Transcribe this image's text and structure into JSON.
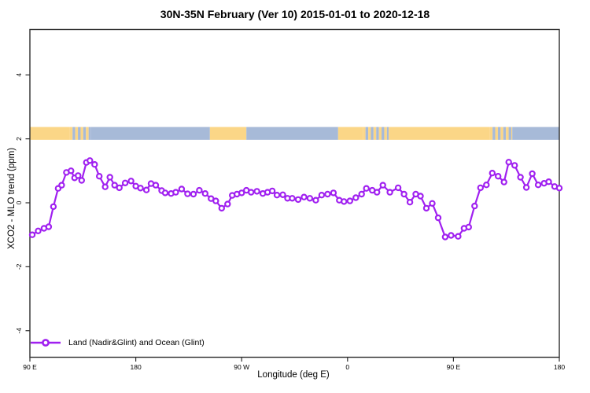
{
  "chart_data": {
    "type": "line",
    "title": "30N-35N February (Ver 10)  2015-01-01 to 2020-12-18",
    "xlabel": "Longitude (deg E)",
    "ylabel": "XCO2 - MLO trend (ppm)",
    "legend": {
      "label": "Land (Nadir&Glint) and Ocean (Glint)",
      "position": "bottom-left"
    },
    "grid": false,
    "x_axis": {
      "unit": "degrees east, wrapping 90E through 180, 90W, 0, back to 180",
      "range_deg": [
        90,
        540
      ],
      "ticks": [
        {
          "lon": 90,
          "label": "90 E"
        },
        {
          "lon": 180,
          "label": "180"
        },
        {
          "lon": 270,
          "label": "90 W"
        },
        {
          "lon": 360,
          "label": "0"
        },
        {
          "lon": 450,
          "label": "90 E"
        },
        {
          "lon": 540,
          "label": "180"
        }
      ]
    },
    "y_axis": {
      "ylim": [
        -4.83,
        5.42
      ],
      "ticks": [
        {
          "value": 4,
          "label": "4"
        },
        {
          "value": 2,
          "label": "2"
        },
        {
          "value": 0,
          "label": "0"
        },
        {
          "value": -2,
          "label": "-2"
        },
        {
          "value": -4,
          "label": "-4"
        }
      ]
    },
    "colors": {
      "series": "#A020F0",
      "marker_fill": "#ffffff",
      "land": "#FBD687",
      "ocean": "#A7BAD8",
      "axis": "#2e2e2e"
    },
    "map_band": {
      "description": "land/ocean strip at 30N-35N drawn near y=2",
      "value_top": 2.37,
      "value_bottom": 1.97,
      "segments": [
        {
          "start_lon": 90,
          "end_lon": 124,
          "type": "land"
        },
        {
          "start_lon": 124,
          "end_lon": 142,
          "type": "mixed"
        },
        {
          "start_lon": 142,
          "end_lon": 243,
          "type": "ocean"
        },
        {
          "start_lon": 243,
          "end_lon": 274,
          "type": "land"
        },
        {
          "start_lon": 274,
          "end_lon": 352,
          "type": "ocean"
        },
        {
          "start_lon": 352,
          "end_lon": 373,
          "type": "land"
        },
        {
          "start_lon": 373,
          "end_lon": 395,
          "type": "mixed"
        },
        {
          "start_lon": 395,
          "end_lon": 481,
          "type": "land"
        },
        {
          "start_lon": 481,
          "end_lon": 500,
          "type": "mixed"
        },
        {
          "start_lon": 500,
          "end_lon": 540,
          "type": "ocean"
        }
      ]
    },
    "series": [
      {
        "name": "Land (Nadir&Glint) and Ocean (Glint)",
        "points": [
          [
            92,
            -1.0
          ],
          [
            97,
            -0.88
          ],
          [
            102,
            -0.8
          ],
          [
            106,
            -0.75
          ],
          [
            110,
            -0.12
          ],
          [
            114,
            0.45
          ],
          [
            117,
            0.55
          ],
          [
            121,
            0.95
          ],
          [
            125,
            1.0
          ],
          [
            128,
            0.78
          ],
          [
            131,
            0.85
          ],
          [
            134,
            0.7
          ],
          [
            138,
            1.26
          ],
          [
            141,
            1.32
          ],
          [
            145,
            1.2
          ],
          [
            149,
            0.83
          ],
          [
            154,
            0.5
          ],
          [
            158,
            0.8
          ],
          [
            162,
            0.55
          ],
          [
            166,
            0.47
          ],
          [
            171,
            0.62
          ],
          [
            176,
            0.68
          ],
          [
            180,
            0.52
          ],
          [
            184,
            0.46
          ],
          [
            189,
            0.4
          ],
          [
            193,
            0.6
          ],
          [
            197,
            0.55
          ],
          [
            202,
            0.38
          ],
          [
            205,
            0.31
          ],
          [
            210,
            0.29
          ],
          [
            214,
            0.33
          ],
          [
            219,
            0.43
          ],
          [
            224,
            0.28
          ],
          [
            229,
            0.27
          ],
          [
            234,
            0.39
          ],
          [
            239,
            0.29
          ],
          [
            244,
            0.13
          ],
          [
            248,
            0.06
          ],
          [
            253,
            -0.17
          ],
          [
            258,
            -0.04
          ],
          [
            262,
            0.23
          ],
          [
            266,
            0.27
          ],
          [
            270,
            0.31
          ],
          [
            274,
            0.39
          ],
          [
            278,
            0.33
          ],
          [
            283,
            0.36
          ],
          [
            288,
            0.29
          ],
          [
            292,
            0.33
          ],
          [
            296,
            0.37
          ],
          [
            300,
            0.24
          ],
          [
            305,
            0.25
          ],
          [
            309,
            0.14
          ],
          [
            313,
            0.14
          ],
          [
            318,
            0.1
          ],
          [
            323,
            0.18
          ],
          [
            328,
            0.14
          ],
          [
            333,
            0.08
          ],
          [
            338,
            0.24
          ],
          [
            343,
            0.27
          ],
          [
            348,
            0.31
          ],
          [
            353,
            0.08
          ],
          [
            357,
            0.04
          ],
          [
            362,
            0.06
          ],
          [
            367,
            0.16
          ],
          [
            372,
            0.27
          ],
          [
            376,
            0.45
          ],
          [
            381,
            0.39
          ],
          [
            385,
            0.33
          ],
          [
            390,
            0.55
          ],
          [
            396,
            0.33
          ],
          [
            403,
            0.47
          ],
          [
            408,
            0.27
          ],
          [
            413,
            0.02
          ],
          [
            418,
            0.27
          ],
          [
            422,
            0.21
          ],
          [
            427,
            -0.17
          ],
          [
            432,
            -0.02
          ],
          [
            437,
            -0.47
          ],
          [
            443,
            -1.07
          ],
          [
            448,
            -1.02
          ],
          [
            454,
            -1.05
          ],
          [
            459,
            -0.8
          ],
          [
            463,
            -0.76
          ],
          [
            468,
            -0.1
          ],
          [
            473,
            0.47
          ],
          [
            478,
            0.56
          ],
          [
            483,
            0.93
          ],
          [
            488,
            0.83
          ],
          [
            493,
            0.65
          ],
          [
            497,
            1.27
          ],
          [
            502,
            1.17
          ],
          [
            507,
            0.8
          ],
          [
            512,
            0.48
          ],
          [
            517,
            0.91
          ],
          [
            522,
            0.56
          ],
          [
            527,
            0.61
          ],
          [
            531,
            0.66
          ],
          [
            536,
            0.51
          ],
          [
            540,
            0.46
          ]
        ]
      }
    ]
  }
}
